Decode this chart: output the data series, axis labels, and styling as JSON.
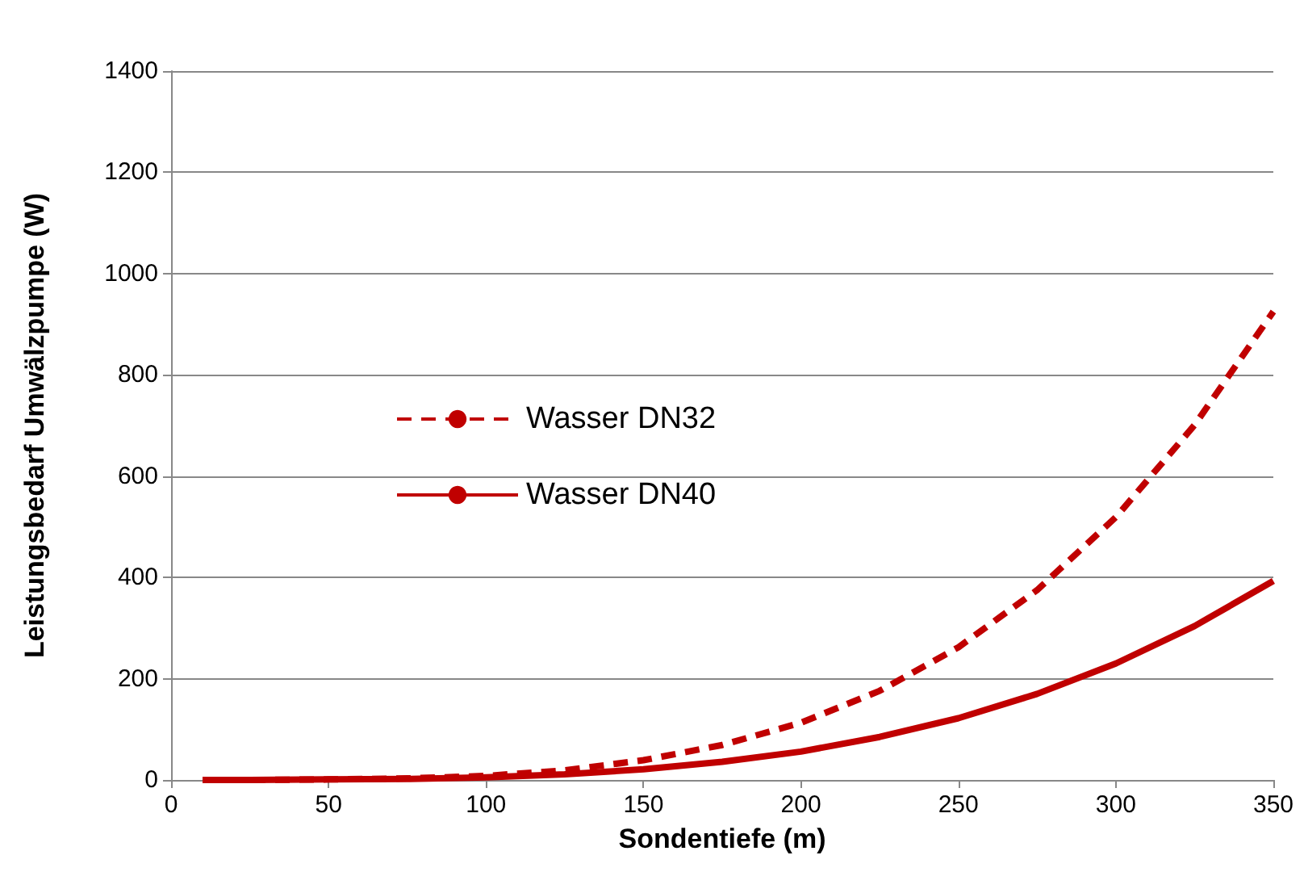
{
  "chart_data": {
    "type": "line",
    "xlabel": "Sondentiefe (m)",
    "ylabel": "Leistungsbedarf Umwälzpumpe (W)",
    "x": [
      10,
      25,
      50,
      75,
      100,
      125,
      150,
      175,
      200,
      225,
      250,
      275,
      300,
      325,
      350
    ],
    "series": [
      {
        "name": "Wasser DN32",
        "color": "#c00000",
        "line_style": "dashed",
        "values": [
          0,
          0,
          1,
          3,
          8,
          19,
          39,
          69,
          113,
          176,
          262,
          375,
          519,
          701,
          925
        ]
      },
      {
        "name": "Wasser DN40",
        "color": "#c00000",
        "line_style": "solid",
        "values": [
          0,
          0,
          1,
          2,
          5,
          11,
          21,
          36,
          56,
          85,
          122,
          170,
          230,
          304,
          393
        ]
      }
    ],
    "xlim": [
      0,
      350
    ],
    "xticks": [
      0,
      50,
      100,
      150,
      200,
      250,
      300,
      350
    ],
    "ylim": [
      0,
      1400
    ],
    "yticks": [
      0,
      200,
      400,
      600,
      800,
      1000,
      1200,
      1400
    ],
    "grid": "y",
    "legend": "left",
    "marker": "none"
  }
}
